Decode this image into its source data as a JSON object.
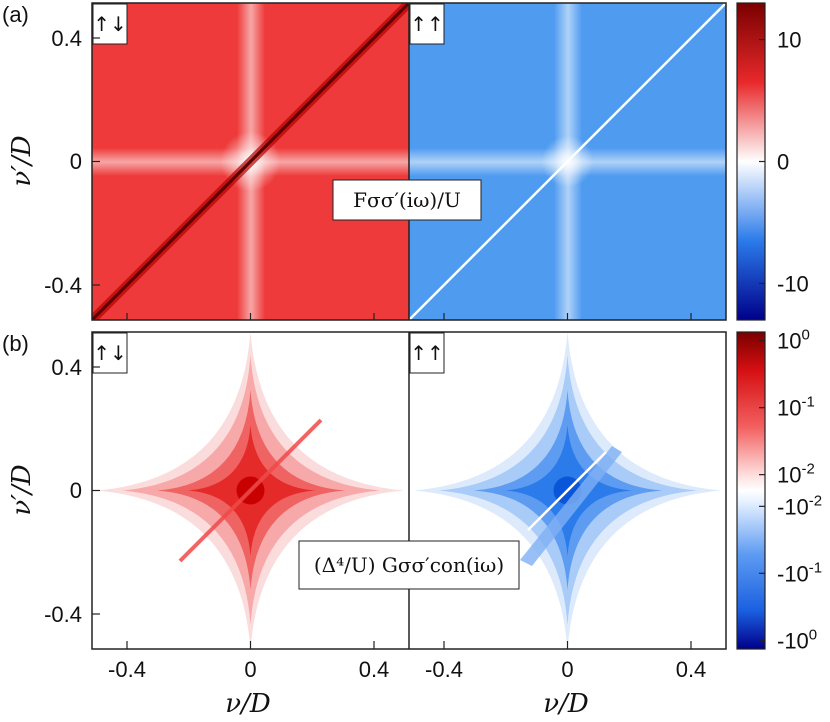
{
  "figure": {
    "panel_a_label": "(a)",
    "panel_b_label": "(b)",
    "xlabel": "ν/D",
    "ylabel": "ν′/D"
  },
  "chart_data": [
    {
      "type": "heatmap",
      "panel": "(a)",
      "annotation": "Fσσ′(iω)/U",
      "subpanels": [
        {
          "label": "↑↓",
          "sign": "positive",
          "color": "#e8292b",
          "diagonal_color": "#6e0000"
        },
        {
          "label": "↑↑",
          "sign": "negative",
          "color": "#4f9bf0",
          "diagonal_color": "#ffffff"
        }
      ],
      "x_ticks": [
        "-0.4",
        "0",
        "0.4"
      ],
      "y_ticks": [
        "0.4",
        "0",
        "-0.4"
      ],
      "xlim": [
        -0.5,
        0.5
      ],
      "ylim": [
        -0.5,
        0.5
      ],
      "colorbar": {
        "range": [
          -13,
          13
        ],
        "ticks": [
          {
            "value": 10,
            "label": "10"
          },
          {
            "value": 0,
            "label": "0"
          },
          {
            "value": -10,
            "label": "-10"
          }
        ]
      }
    },
    {
      "type": "heatmap",
      "panel": "(b)",
      "annotation": "(Δ⁴/U) Gσσ′con(iω)",
      "subpanels": [
        {
          "label": "↑↓",
          "sign": "positive",
          "color": "#e8292b",
          "diagonal_color": "#ffb0b0"
        },
        {
          "label": "↑↑",
          "sign": "negative",
          "color": "#1f6fe6",
          "diagonal_color": "#ffffff"
        }
      ],
      "x_ticks": [
        "-0.4",
        "0",
        "0.4"
      ],
      "y_ticks": [
        "0.4",
        "0",
        "-0.4"
      ],
      "xlim": [
        -0.5,
        0.5
      ],
      "ylim": [
        -0.5,
        0.5
      ],
      "colorbar": {
        "scale": "symlog",
        "ticks": [
          {
            "value": 1,
            "label": "10^0"
          },
          {
            "value": 0.1,
            "label": "10^-1"
          },
          {
            "value": 0.01,
            "label": "10^-2"
          },
          {
            "value": -0.01,
            "label": "-10^-2"
          },
          {
            "value": -0.1,
            "label": "-10^-1"
          },
          {
            "value": -1,
            "label": "-10^0"
          }
        ]
      }
    }
  ],
  "colors": {
    "deep_red": "#7a0000",
    "red": "#e8292b",
    "white": "#ffffff",
    "blue": "#2b7bea",
    "deep_blue": "#00008a"
  }
}
